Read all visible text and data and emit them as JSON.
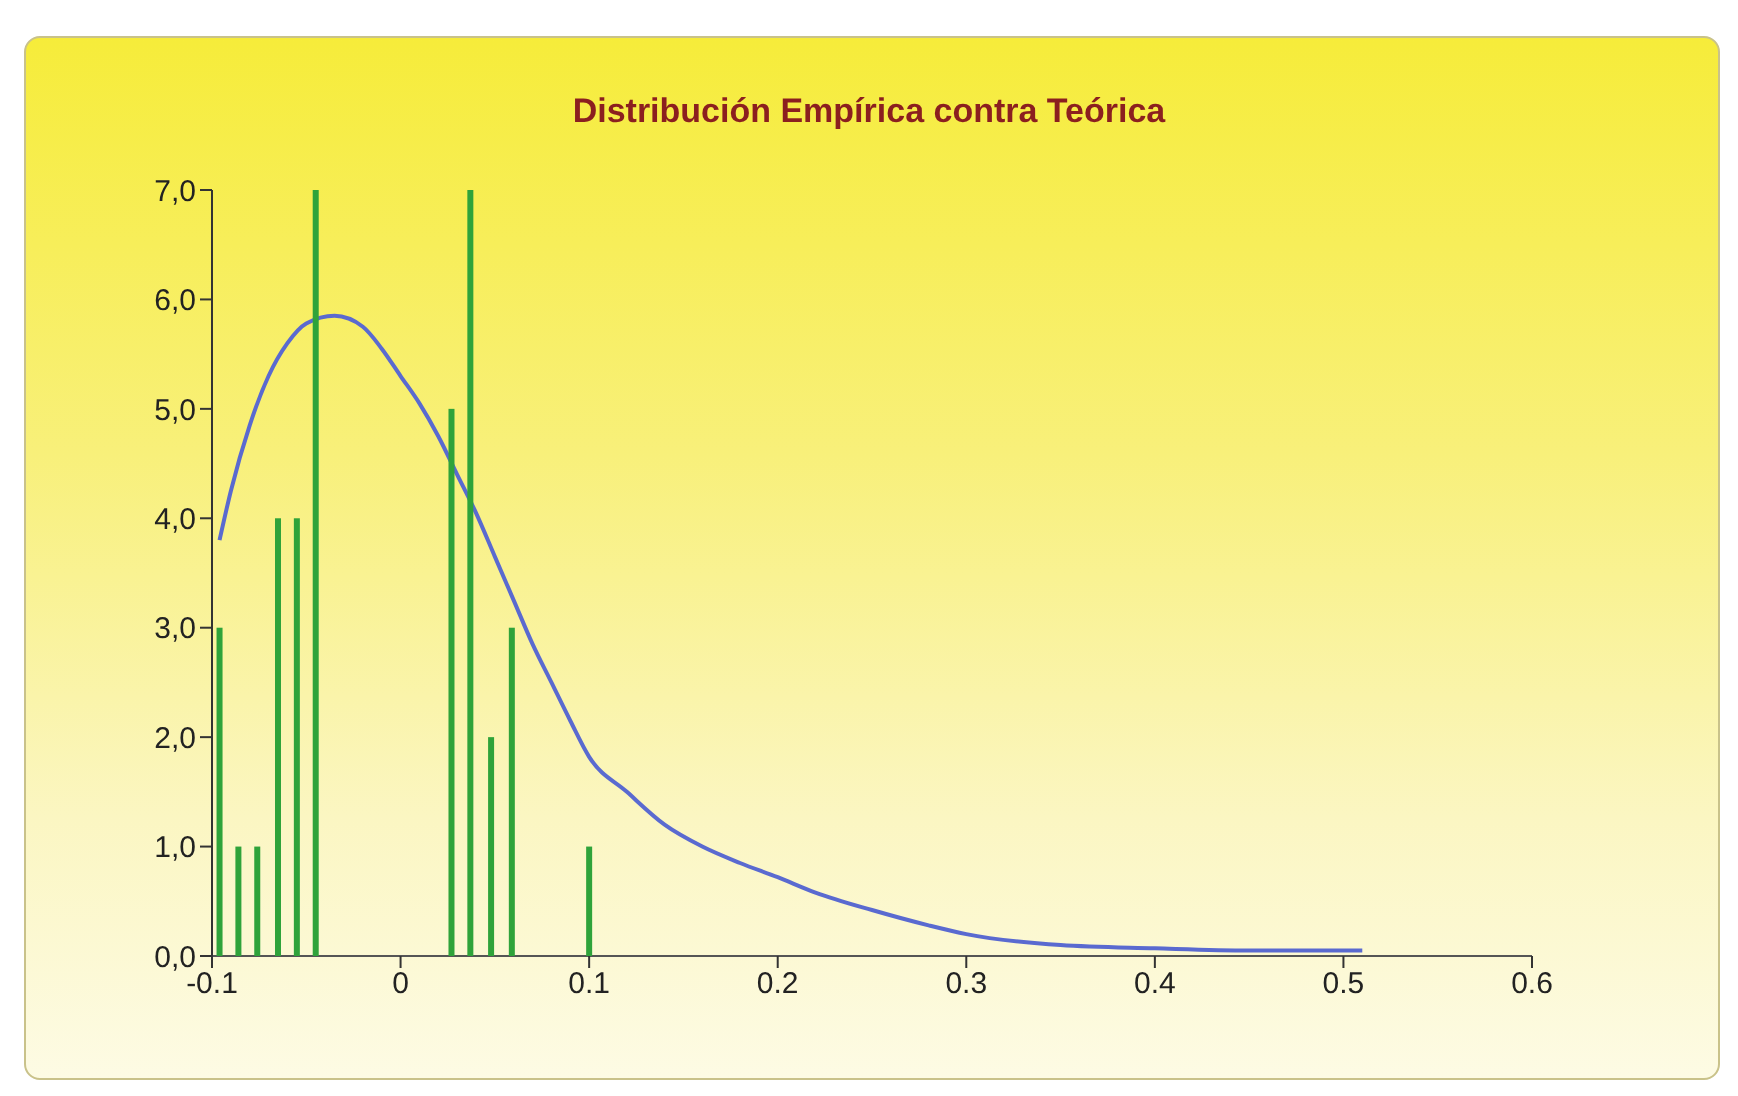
{
  "chart_data": {
    "type": "bar",
    "title": "Distribución Empírica contra Teórica",
    "xlim": [
      -0.1,
      0.6
    ],
    "xticks": [
      -0.1,
      0,
      0.1,
      0.2,
      0.3,
      0.4,
      0.5,
      0.6
    ],
    "ylim": [
      0,
      7
    ],
    "yticks": [
      {
        "value": 0,
        "label": "0,0"
      },
      {
        "value": 1,
        "label": "1,0"
      },
      {
        "value": 2,
        "label": "2,0"
      },
      {
        "value": 3,
        "label": "3,0"
      },
      {
        "value": 4,
        "label": "4,0"
      },
      {
        "value": 5,
        "label": "5,0"
      },
      {
        "value": 6,
        "label": "6,0"
      },
      {
        "value": 7,
        "label": "7,0"
      }
    ],
    "series": [
      {
        "color": "#2fa33a",
        "x": [
          -0.096,
          -0.086,
          -0.076,
          -0.065,
          -0.055,
          -0.045,
          0.027,
          0.037,
          0.048,
          0.059,
          0.1
        ],
        "values": [
          3,
          1,
          1,
          4,
          4,
          7,
          5,
          7,
          2,
          3,
          1
        ]
      },
      {
        "type": "line",
        "color": "#5a6ad0",
        "x": [
          -0.096,
          -0.09,
          -0.08,
          -0.07,
          -0.06,
          -0.05,
          -0.035,
          -0.02,
          -0.01,
          0,
          0.01,
          0.02,
          0.03,
          0.04,
          0.05,
          0.06,
          0.07,
          0.08,
          0.09,
          0.1,
          0.12,
          0.14,
          0.16,
          0.18,
          0.2,
          0.22,
          0.25,
          0.28,
          0.3,
          0.35,
          0.4,
          0.45,
          0.51
        ],
        "values": [
          3.8,
          4.25,
          4.85,
          5.3,
          5.6,
          5.78,
          5.85,
          5.75,
          5.55,
          5.3,
          5.05,
          4.75,
          4.4,
          4.05,
          3.65,
          3.25,
          2.85,
          2.5,
          2.15,
          1.82,
          1.5,
          1.2,
          1.0,
          0.85,
          0.72,
          0.58,
          0.42,
          0.28,
          0.2,
          0.1,
          0.07,
          0.05,
          0.05
        ]
      }
    ],
    "grid": false,
    "legend": false,
    "marker": "none"
  }
}
